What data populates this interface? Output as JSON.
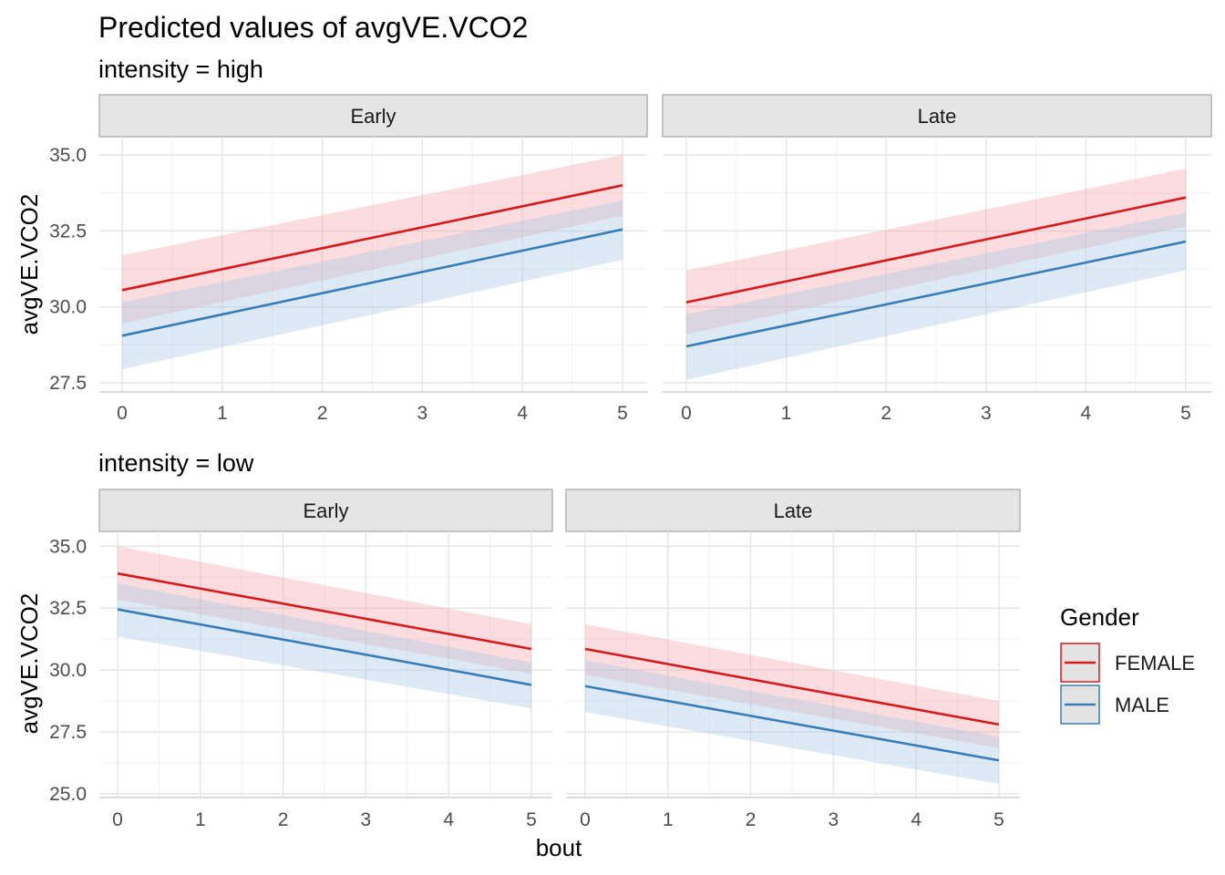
{
  "chart_data": {
    "type": "line",
    "title": "Predicted values of avgVE.VCO2",
    "xlabel": "bout",
    "ylabel": "avgVE.VCO2",
    "legend": {
      "title": "Gender",
      "position": "right",
      "entries": [
        {
          "name": "FEMALE",
          "color": "#d7191c"
        },
        {
          "name": "MALE",
          "color": "#377eb8"
        }
      ]
    },
    "grid": true,
    "x_ticks": [
      "0",
      "1",
      "2",
      "3",
      "4",
      "5"
    ],
    "rows": [
      {
        "subtitle": "intensity = high",
        "ylim": [
          27.2,
          35.6
        ],
        "y_ticks": [
          27.5,
          30.0,
          32.5,
          35.0
        ],
        "y_tick_labels": [
          "27.5",
          "30.0",
          "32.5",
          "35.0"
        ],
        "panels": [
          {
            "strip": "Early",
            "series": [
              {
                "name": "FEMALE",
                "x": [
                  0,
                  5
                ],
                "y": [
                  30.55,
                  34.0
                ],
                "lower": [
                  29.45,
                  33.0
                ],
                "upper": [
                  31.7,
                  35.0
                ]
              },
              {
                "name": "MALE",
                "x": [
                  0,
                  5
                ],
                "y": [
                  29.05,
                  32.55
                ],
                "lower": [
                  27.95,
                  31.55
                ],
                "upper": [
                  30.15,
                  33.5
                ]
              }
            ]
          },
          {
            "strip": "Late",
            "series": [
              {
                "name": "FEMALE",
                "x": [
                  0,
                  5
                ],
                "y": [
                  30.15,
                  33.6
                ],
                "lower": [
                  29.1,
                  32.65
                ],
                "upper": [
                  31.2,
                  34.55
                ]
              },
              {
                "name": "MALE",
                "x": [
                  0,
                  5
                ],
                "y": [
                  28.7,
                  32.15
                ],
                "lower": [
                  27.6,
                  31.2
                ],
                "upper": [
                  29.75,
                  33.1
                ]
              }
            ]
          }
        ]
      },
      {
        "subtitle": "intensity = low",
        "ylim": [
          24.85,
          35.6
        ],
        "y_ticks": [
          25.0,
          27.5,
          30.0,
          32.5,
          35.0
        ],
        "y_tick_labels": [
          "25.0",
          "27.5",
          "30.0",
          "32.5",
          "35.0"
        ],
        "panels": [
          {
            "strip": "Early",
            "series": [
              {
                "name": "FEMALE",
                "x": [
                  0,
                  5
                ],
                "y": [
                  33.9,
                  30.85
                ],
                "lower": [
                  32.85,
                  29.85
                ],
                "upper": [
                  35.0,
                  31.85
                ]
              },
              {
                "name": "MALE",
                "x": [
                  0,
                  5
                ],
                "y": [
                  32.45,
                  29.4
                ],
                "lower": [
                  31.35,
                  28.45
                ],
                "upper": [
                  33.5,
                  30.3
                ]
              }
            ]
          },
          {
            "strip": "Late",
            "series": [
              {
                "name": "FEMALE",
                "x": [
                  0,
                  5
                ],
                "y": [
                  30.85,
                  27.8
                ],
                "lower": [
                  29.8,
                  26.85
                ],
                "upper": [
                  31.85,
                  28.75
                ]
              },
              {
                "name": "MALE",
                "x": [
                  0,
                  5
                ],
                "y": [
                  29.35,
                  26.35
                ],
                "lower": [
                  28.3,
                  25.4
                ],
                "upper": [
                  30.4,
                  27.3
                ]
              }
            ]
          }
        ]
      }
    ]
  }
}
